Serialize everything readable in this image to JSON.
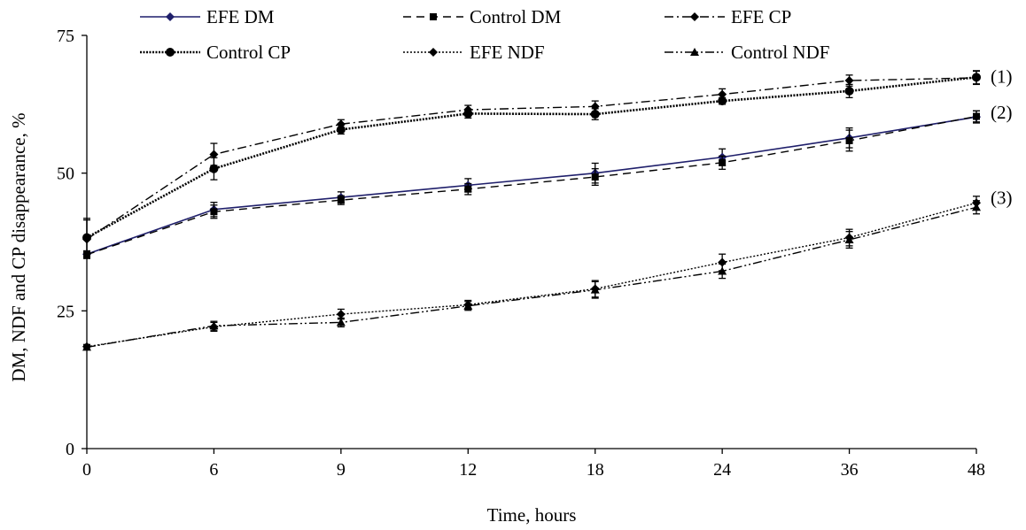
{
  "chart_data": {
    "type": "line",
    "xlabel": "Time, hours",
    "ylabel": "DM, NDF and CP disappearance, %",
    "categories": [
      "0",
      "6",
      "9",
      "12",
      "18",
      "24",
      "36",
      "48"
    ],
    "ylim": [
      0,
      75
    ],
    "yticks": [
      "0",
      "25",
      "50",
      "75"
    ],
    "grid": false,
    "legend_position": "top",
    "annotations": [
      {
        "label": "(1)",
        "category": "48",
        "y": 67.5
      },
      {
        "label": "(2)",
        "category": "48",
        "y": 61
      },
      {
        "label": "(3)",
        "category": "48",
        "y": 45.5
      }
    ],
    "series": [
      {
        "name": "EFE DM",
        "values": [
          35.3,
          43.4,
          45.6,
          47.8,
          50.0,
          52.9,
          56.4,
          60.2
        ],
        "error": [
          0.6,
          1.3,
          1.0,
          1.2,
          1.8,
          1.5,
          1.8,
          1.1
        ],
        "marker": "diamond",
        "dash": "solid",
        "color": "#1f1f6b"
      },
      {
        "name": "Control DM",
        "values": [
          35.2,
          43.0,
          45.1,
          47.1,
          49.3,
          51.9,
          55.9,
          60.3
        ],
        "error": [
          0.6,
          1.2,
          0.8,
          1.0,
          1.5,
          1.2,
          1.9,
          1.0
        ],
        "marker": "square",
        "dash": "dashed",
        "color": "#000000"
      },
      {
        "name": "EFE CP",
        "values": [
          38.0,
          53.4,
          58.9,
          61.5,
          62.1,
          64.3,
          66.8,
          67.3
        ],
        "error": [
          3.5,
          2.0,
          0.8,
          0.8,
          1.0,
          1.0,
          1.0,
          1.2
        ],
        "marker": "diamond",
        "dash": "dashdot",
        "color": "#000000"
      },
      {
        "name": "Control CP",
        "values": [
          38.3,
          50.8,
          57.9,
          60.8,
          60.7,
          63.1,
          64.9,
          67.4
        ],
        "error": [
          3.5,
          2.0,
          0.8,
          0.8,
          1.0,
          0.6,
          1.2,
          1.2
        ],
        "marker": "circle",
        "dash": "dotted-thick",
        "color": "#000000"
      },
      {
        "name": "EFE NDF",
        "values": [
          18.5,
          22.1,
          24.4,
          26.1,
          29.0,
          33.8,
          38.3,
          44.6
        ],
        "error": [
          0.4,
          0.8,
          0.9,
          0.8,
          1.5,
          1.5,
          1.5,
          1.2
        ],
        "marker": "diamond",
        "dash": "dotted",
        "color": "#000000"
      },
      {
        "name": "Control NDF",
        "values": [
          18.4,
          22.3,
          22.9,
          25.9,
          28.8,
          32.2,
          37.9,
          43.8
        ],
        "error": [
          0.4,
          0.8,
          0.8,
          0.8,
          1.5,
          1.3,
          1.5,
          1.2
        ],
        "marker": "triangle",
        "dash": "dashdotdot",
        "color": "#000000"
      }
    ]
  }
}
